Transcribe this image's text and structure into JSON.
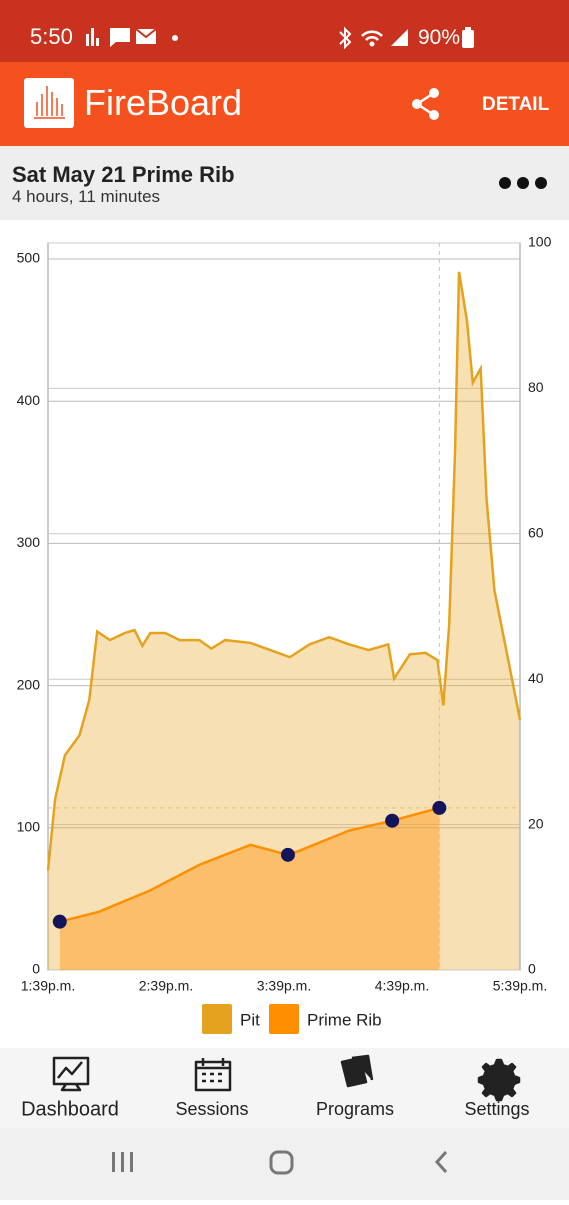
{
  "status_bar": {
    "time": "5:50",
    "battery": "90%"
  },
  "app_bar": {
    "logo": "FireBoard",
    "action": "DETAIL"
  },
  "session": {
    "title": "Sat May 21 Prime Rib",
    "duration": "4 hours, 11 minutes"
  },
  "chart_data": {
    "type": "area",
    "xlim": [
      0,
      240
    ],
    "xticks": [
      {
        "value": 0,
        "label": "1:39p.m."
      },
      {
        "value": 60,
        "label": "2:39p.m."
      },
      {
        "value": 120,
        "label": "3:39p.m."
      },
      {
        "value": 180,
        "label": "4:39p.m."
      },
      {
        "value": 240,
        "label": "5:39p.m."
      }
    ],
    "ylim": [
      0,
      500
    ],
    "yticks": [
      0,
      100,
      200,
      300,
      400,
      500
    ],
    "y2lim": [
      0,
      100
    ],
    "y2ticks": [
      0,
      20,
      40,
      60,
      80,
      100
    ],
    "grid": true,
    "series": [
      {
        "name": "Pit",
        "color": "#e5a21e",
        "x": [
          0,
          3.6,
          8.6,
          16,
          21,
          25,
          31.5,
          39,
          44,
          48,
          52,
          59.5,
          67,
          77,
          83,
          90,
          103,
          113,
          123,
          133,
          143,
          153,
          163,
          173,
          176,
          184,
          192,
          198,
          201,
          204,
          207,
          209,
          213,
          216,
          220,
          223,
          227,
          232,
          240
        ],
        "values": [
          70,
          120,
          151,
          165,
          190,
          238,
          232,
          237,
          239,
          228,
          237,
          237,
          232,
          232,
          226,
          232,
          230,
          225,
          220,
          229,
          234,
          229,
          225,
          229,
          205,
          222,
          223,
          218,
          186,
          243,
          366,
          491,
          457,
          413,
          423,
          331,
          267,
          232,
          176
        ]
      },
      {
        "name": "Prime Rib",
        "color": "#ff8f00",
        "x": [
          6,
          26,
          52,
          77,
          103,
          122,
          128,
          153,
          175,
          199
        ],
        "values": [
          34,
          41,
          56,
          74,
          88,
          81,
          84,
          98,
          105,
          114
        ]
      }
    ]
  },
  "nav": [
    "Dashboard",
    "Sessions",
    "Programs",
    "Settings"
  ]
}
